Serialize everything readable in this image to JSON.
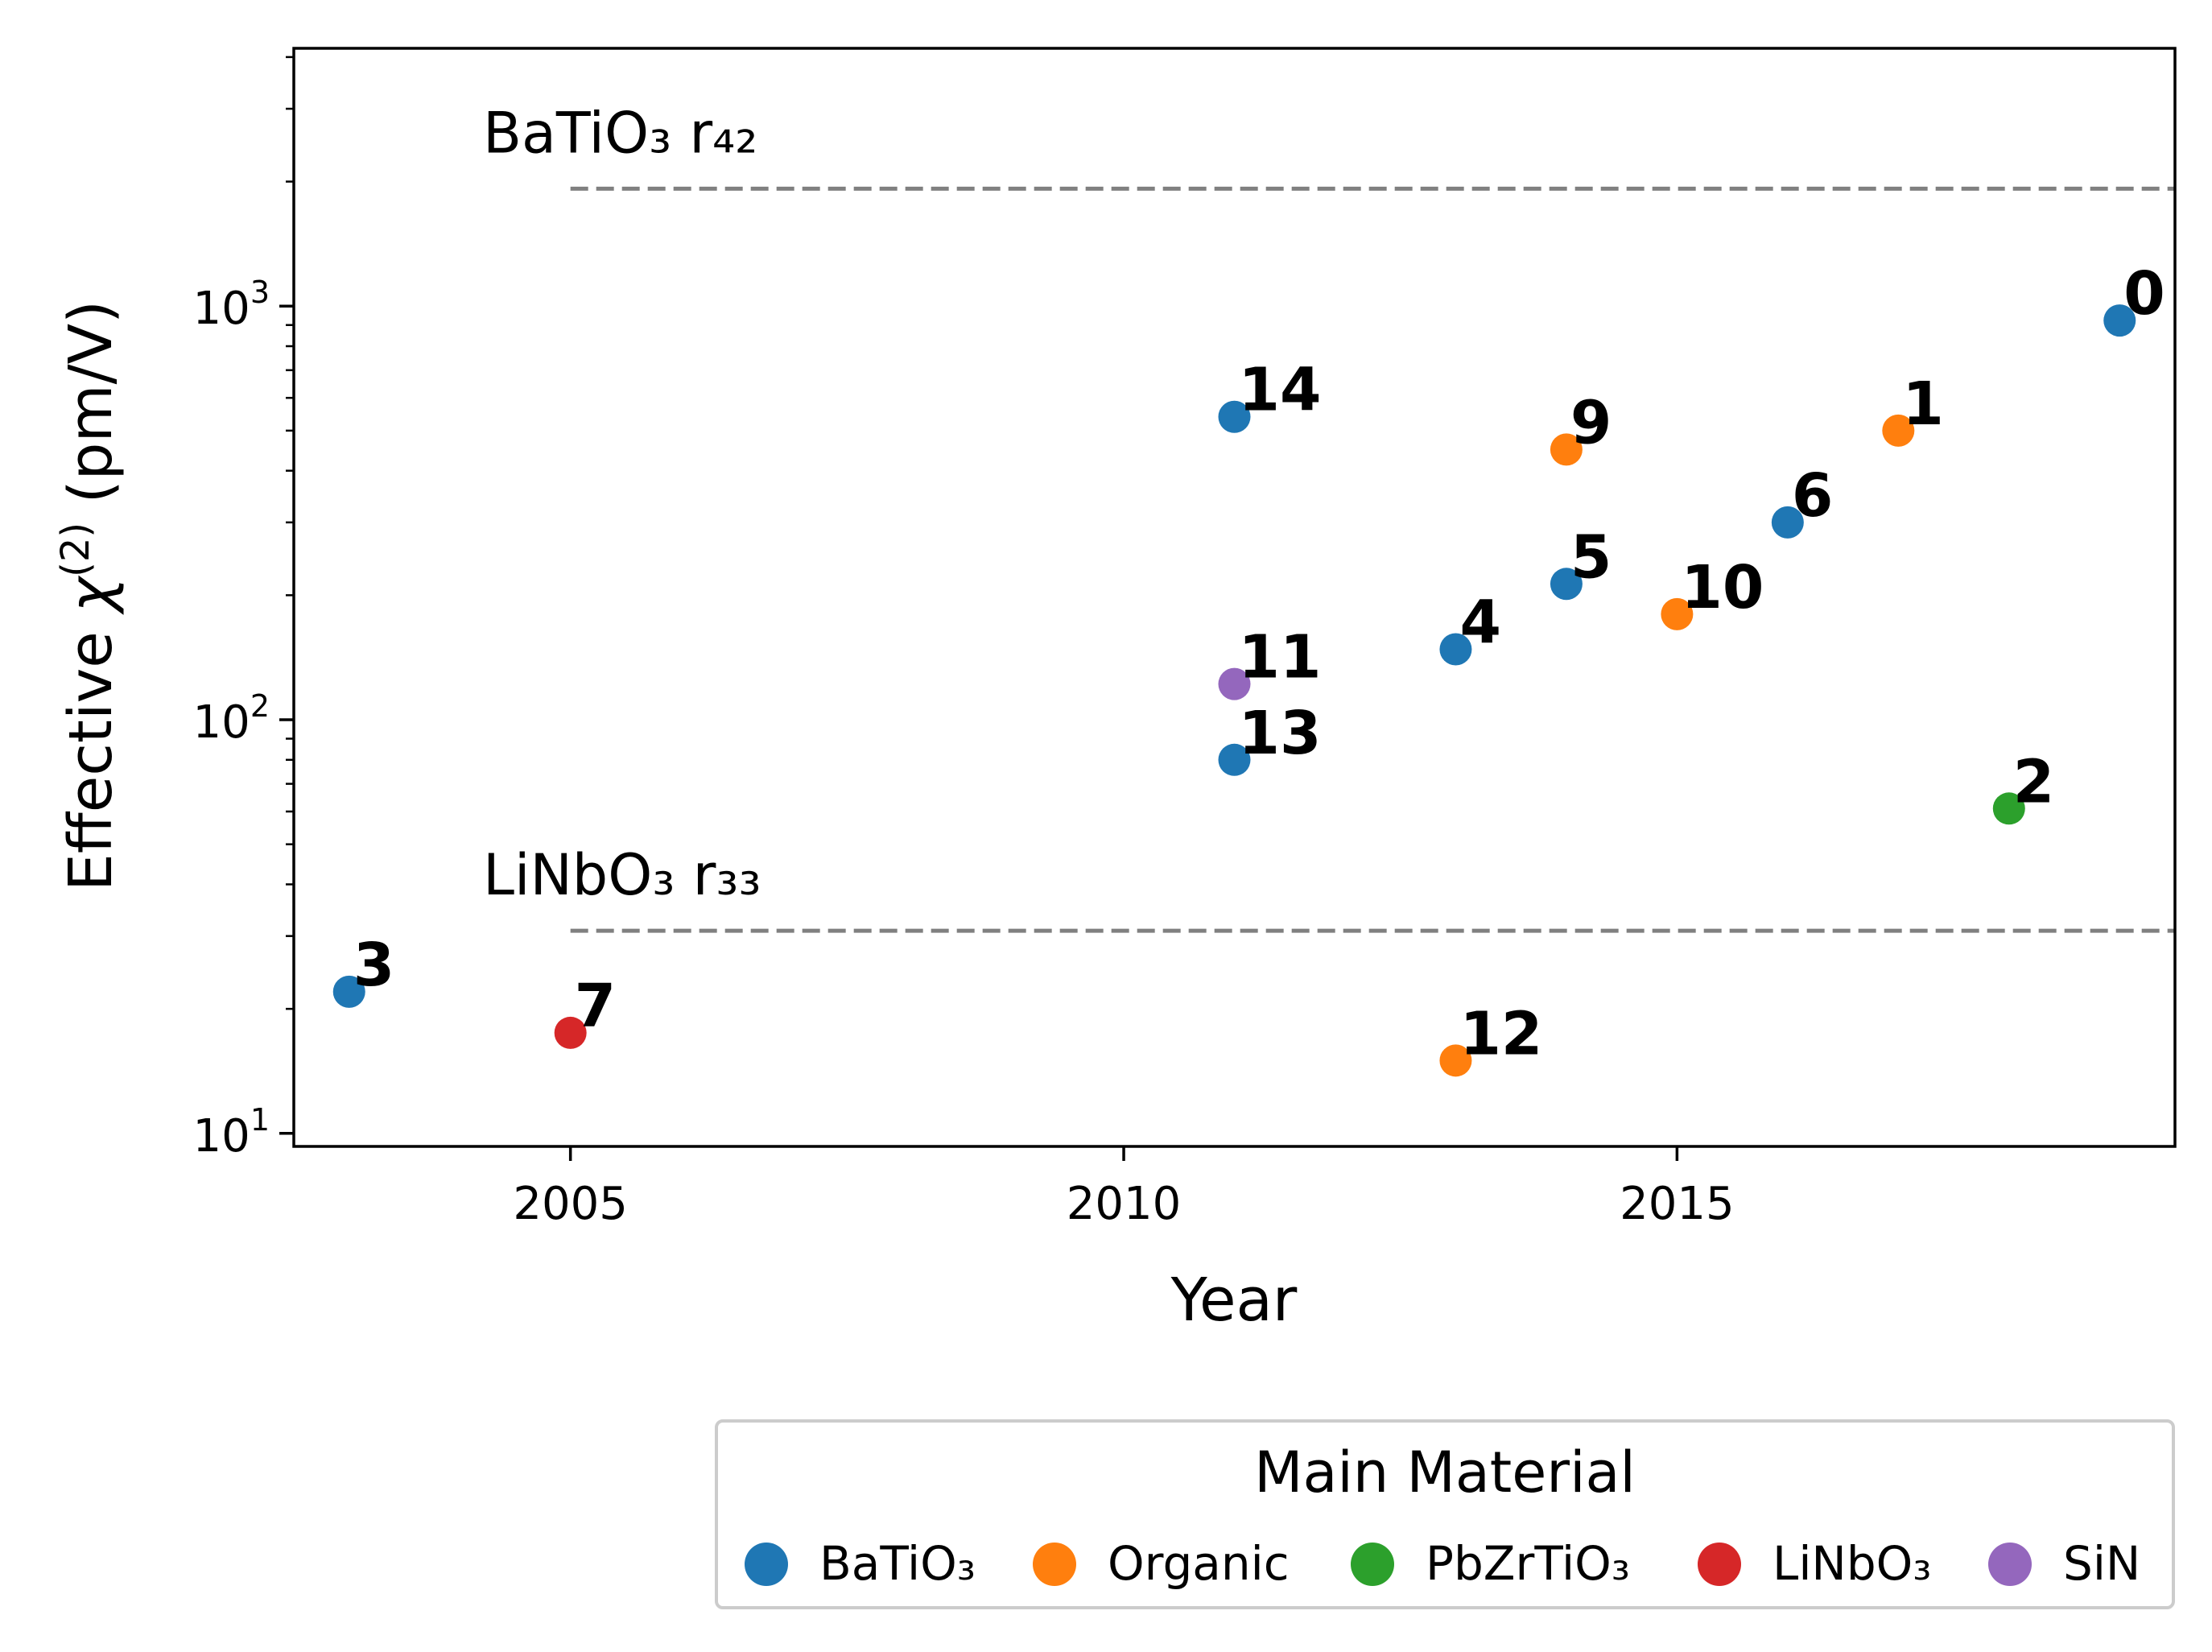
{
  "chart_data": {
    "type": "scatter",
    "xlabel": "Year",
    "ylabel_prefix": "Effective ",
    "ylabel_chi": "χ",
    "ylabel_sup": "(2)",
    "ylabel_suffix": " (pm/V)",
    "xscale": "linear",
    "yscale": "log",
    "xlim": [
      2002.5,
      2019.5
    ],
    "ylim": [
      9.3,
      4200
    ],
    "x_ticks": [
      2005,
      2010,
      2015
    ],
    "y_ticks": [
      {
        "value": 10,
        "base": "10",
        "exp": "1"
      },
      {
        "value": 100,
        "base": "10",
        "exp": "2"
      },
      {
        "value": 1000,
        "base": "10",
        "exp": "3"
      }
    ],
    "reference_lines": [
      {
        "name": "batio3-r42-line",
        "label": "BaTiO₃ r₄₂",
        "value": 1923,
        "x_start": 2005,
        "color": "#808080"
      },
      {
        "name": "linbo3-r33-line",
        "label": "LiNbO₃ r₃₃",
        "value": 30.9,
        "x_start": 2005,
        "color": "#808080"
      }
    ],
    "series": [
      {
        "name": "BaTiO₃",
        "color": "#1f77b4",
        "points": [
          {
            "id": "0",
            "x": 2019,
            "y": 923
          },
          {
            "id": "3",
            "x": 2003,
            "y": 22
          },
          {
            "id": "4",
            "x": 2013,
            "y": 148
          },
          {
            "id": "5",
            "x": 2014,
            "y": 213
          },
          {
            "id": "6",
            "x": 2016,
            "y": 300
          },
          {
            "id": "13",
            "x": 2011,
            "y": 80
          },
          {
            "id": "14",
            "x": 2011,
            "y": 540
          }
        ]
      },
      {
        "name": "Organic",
        "color": "#ff7f0e",
        "points": [
          {
            "id": "1",
            "x": 2017,
            "y": 500
          },
          {
            "id": "9",
            "x": 2014,
            "y": 450
          },
          {
            "id": "10",
            "x": 2015,
            "y": 180
          },
          {
            "id": "12",
            "x": 2013,
            "y": 15
          }
        ]
      },
      {
        "name": "PbZrTiO₃",
        "color": "#2ca02c",
        "points": [
          {
            "id": "2",
            "x": 2018,
            "y": 61
          }
        ]
      },
      {
        "name": "LiNbO₃",
        "color": "#d62728",
        "points": [
          {
            "id": "7",
            "x": 2005,
            "y": 17.5
          }
        ]
      },
      {
        "name": "SiN",
        "color": "#9467bd",
        "points": [
          {
            "id": "11",
            "x": 2011,
            "y": 122
          }
        ]
      }
    ],
    "legend": {
      "title": "Main Material",
      "position": "bottom-right, below plot"
    }
  }
}
